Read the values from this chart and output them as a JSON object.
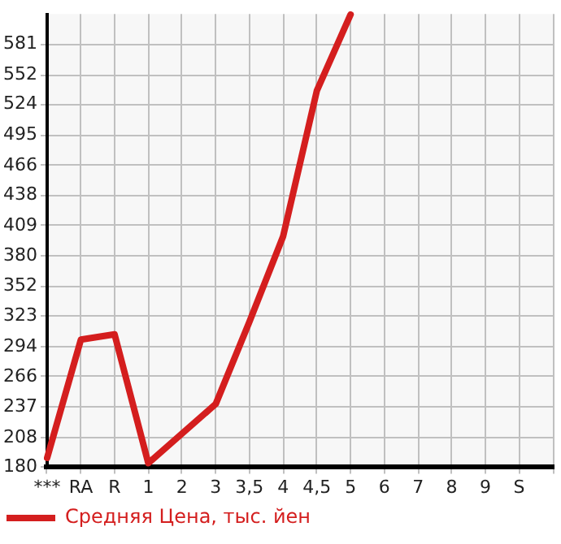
{
  "chart_data": {
    "type": "line",
    "categories": [
      "***",
      "RA",
      "R",
      "1",
      "2",
      "3",
      "3,5",
      "4",
      "4,5",
      "5",
      "6",
      "7",
      "8",
      "9",
      "S",
      null
    ],
    "series": [
      {
        "name": "Средняя Цена, тыс. йен",
        "color": "#d41e1e",
        "values": [
          189,
          301,
          306,
          184,
          null,
          240,
          318,
          399,
          537,
          609,
          null,
          null,
          null,
          null,
          null,
          null
        ]
      }
    ],
    "ylim": [
      180,
      609.6
    ],
    "yticks": [
      180,
      208,
      237,
      266,
      294,
      323,
      352,
      380,
      409,
      438,
      466,
      495,
      524,
      552,
      581
    ],
    "grid": true,
    "legend": "bottom",
    "marker": "none",
    "line_style": "solid"
  }
}
